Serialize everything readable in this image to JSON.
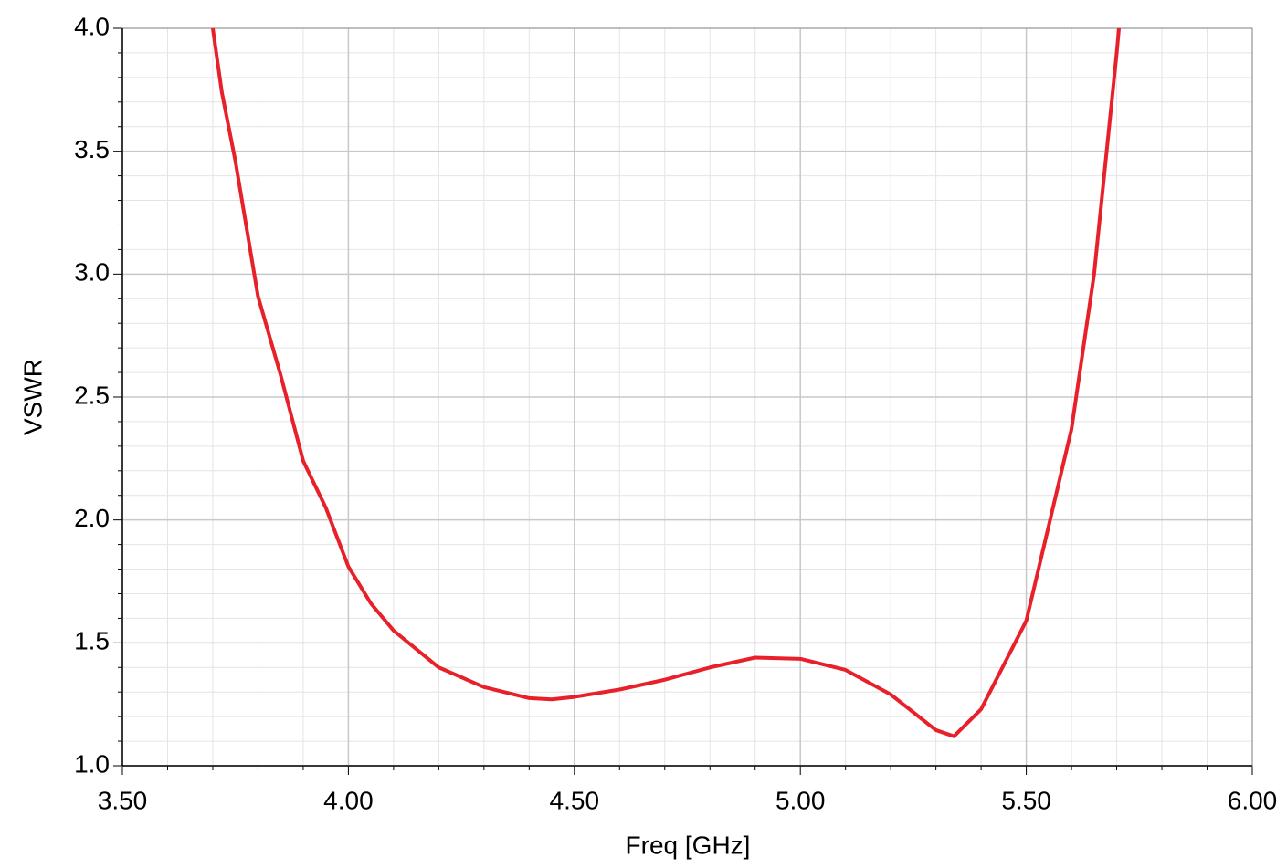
{
  "chart_data": {
    "type": "line",
    "x_label": "Freq [GHz]",
    "y_label": "VSWR",
    "xlim": [
      3.5,
      6.0
    ],
    "xticks": [
      {
        "value": 3.5,
        "label": "3.50"
      },
      {
        "value": 4.0,
        "label": "4.00"
      },
      {
        "value": 4.5,
        "label": "4.50"
      },
      {
        "value": 5.0,
        "label": "5.00"
      },
      {
        "value": 5.5,
        "label": "5.50"
      },
      {
        "value": 6.0,
        "label": "6.00"
      }
    ],
    "ylim": [
      1.0,
      4.0
    ],
    "yticks": [
      {
        "value": 1.0,
        "label": "1.0"
      },
      1.5,
      {
        "value": 2.0,
        "label": "2.0"
      },
      2.5,
      {
        "value": 3.0,
        "label": "3.0"
      },
      3.5,
      {
        "value": 4.0,
        "label": "4.0"
      }
    ],
    "grid": true,
    "minor_grid": true,
    "x": [
      3.7,
      3.72,
      3.75,
      3.8,
      3.85,
      3.9,
      3.95,
      4.0,
      4.05,
      4.1,
      4.2,
      4.3,
      4.4,
      4.45,
      4.5,
      4.6,
      4.7,
      4.8,
      4.9,
      5.0,
      5.1,
      5.2,
      5.3,
      5.34,
      5.4,
      5.5,
      5.6,
      5.65,
      5.7,
      5.705
    ],
    "series": [
      {
        "name": "VSWR",
        "color": "#e8202a",
        "values": [
          4.0,
          3.74,
          3.46,
          2.91,
          2.59,
          2.24,
          2.05,
          1.81,
          1.66,
          1.55,
          1.4,
          1.32,
          1.275,
          1.27,
          1.28,
          1.31,
          1.35,
          1.4,
          1.44,
          1.435,
          1.39,
          1.29,
          1.145,
          1.12,
          1.23,
          1.59,
          2.37,
          3.0,
          3.9,
          4.0
        ]
      }
    ]
  }
}
